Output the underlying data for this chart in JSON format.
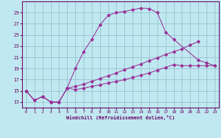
{
  "xlabel": "Windchill (Refroidissement éolien,°C)",
  "background_color": "#c0e8f0",
  "grid_color": "#90b8c8",
  "line_color": "#993399",
  "tick_color": "#660066",
  "ylim": [
    12,
    31
  ],
  "xlim": [
    -0.5,
    23.5
  ],
  "yticks": [
    13,
    15,
    17,
    19,
    21,
    23,
    25,
    27,
    29
  ],
  "xticks": [
    0,
    1,
    2,
    3,
    4,
    5,
    6,
    7,
    8,
    9,
    10,
    11,
    12,
    13,
    14,
    15,
    16,
    17,
    18,
    19,
    20,
    21,
    22,
    23
  ],
  "c1x": [
    0,
    1,
    2,
    3,
    4,
    5,
    6,
    7,
    8,
    9,
    10,
    11,
    12,
    13,
    14,
    15,
    16,
    17,
    18,
    21,
    22,
    23
  ],
  "c1y": [
    15.0,
    13.3,
    14.0,
    13.0,
    13.0,
    15.5,
    19.0,
    22.0,
    24.2,
    26.8,
    28.5,
    29.0,
    29.2,
    29.5,
    29.8,
    29.7,
    29.0,
    25.5,
    24.2,
    20.5,
    20.0,
    19.5
  ],
  "c2x": [
    0,
    1,
    2,
    3,
    4,
    5,
    6,
    7,
    8,
    9,
    10,
    11,
    12,
    13,
    14,
    15,
    16,
    17,
    18,
    19,
    20,
    21
  ],
  "c2y": [
    15.0,
    13.3,
    14.0,
    13.0,
    13.0,
    15.5,
    15.8,
    16.2,
    16.7,
    17.2,
    17.7,
    18.2,
    18.8,
    19.3,
    19.8,
    20.4,
    20.9,
    21.5,
    22.0,
    22.5,
    23.2,
    23.8
  ],
  "c3x": [
    0,
    1,
    2,
    3,
    4,
    5,
    6,
    7,
    8,
    9,
    10,
    11,
    12,
    13,
    14,
    15,
    16,
    17,
    18,
    19,
    20,
    21,
    22,
    23
  ],
  "c3y": [
    15.0,
    13.3,
    14.0,
    13.0,
    13.0,
    15.5,
    15.2,
    15.5,
    15.8,
    16.1,
    16.4,
    16.7,
    17.0,
    17.4,
    17.8,
    18.2,
    18.7,
    19.2,
    19.7,
    19.5,
    19.5,
    19.5,
    19.5,
    19.5
  ]
}
